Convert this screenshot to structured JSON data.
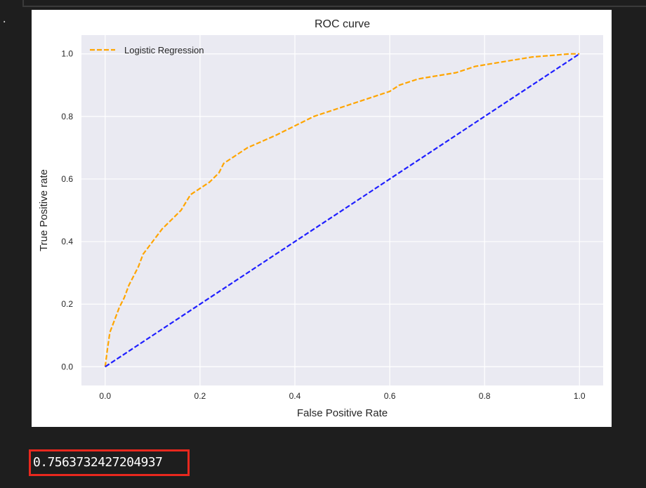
{
  "cell": {
    "prompt_marker": "."
  },
  "chart_data": {
    "type": "line",
    "title": "ROC curve",
    "xlabel": "False Positive Rate",
    "ylabel": "True Positive rate",
    "xlim": [
      -0.05,
      1.05
    ],
    "ylim": [
      -0.06,
      1.06
    ],
    "xticks": [
      "0.0",
      "0.2",
      "0.4",
      "0.6",
      "0.8",
      "1.0"
    ],
    "yticks": [
      "0.0",
      "0.2",
      "0.4",
      "0.6",
      "0.8",
      "1.0"
    ],
    "grid": true,
    "legend": {
      "placement": "top-left",
      "entries": [
        "Logistic Regression"
      ]
    },
    "series": [
      {
        "name": "Logistic Regression",
        "color": "#ffa500",
        "style": "dashed",
        "x": [
          0.0,
          0.005,
          0.01,
          0.02,
          0.03,
          0.04,
          0.05,
          0.06,
          0.07,
          0.08,
          0.09,
          0.1,
          0.12,
          0.14,
          0.16,
          0.18,
          0.2,
          0.22,
          0.24,
          0.25,
          0.27,
          0.3,
          0.33,
          0.36,
          0.4,
          0.44,
          0.48,
          0.52,
          0.56,
          0.6,
          0.62,
          0.66,
          0.7,
          0.74,
          0.78,
          0.82,
          0.86,
          0.9,
          0.94,
          0.98,
          1.0
        ],
        "y": [
          0.0,
          0.06,
          0.11,
          0.15,
          0.19,
          0.22,
          0.26,
          0.29,
          0.32,
          0.36,
          0.38,
          0.4,
          0.44,
          0.47,
          0.5,
          0.55,
          0.57,
          0.59,
          0.62,
          0.65,
          0.67,
          0.7,
          0.72,
          0.74,
          0.77,
          0.8,
          0.82,
          0.84,
          0.86,
          0.88,
          0.9,
          0.92,
          0.93,
          0.94,
          0.96,
          0.97,
          0.98,
          0.99,
          0.995,
          1.0,
          1.0
        ]
      },
      {
        "color": "#1f1fff",
        "style": "dashed",
        "x": [
          0.0,
          1.0
        ],
        "y": [
          0.0,
          1.0
        ]
      }
    ]
  },
  "result": {
    "value": "0.7563732427204937"
  },
  "colors": {
    "background": "#1e1e1e",
    "plot_area": "#eaeaf2",
    "grid": "#ffffff",
    "highlight_border": "#e8281e"
  }
}
